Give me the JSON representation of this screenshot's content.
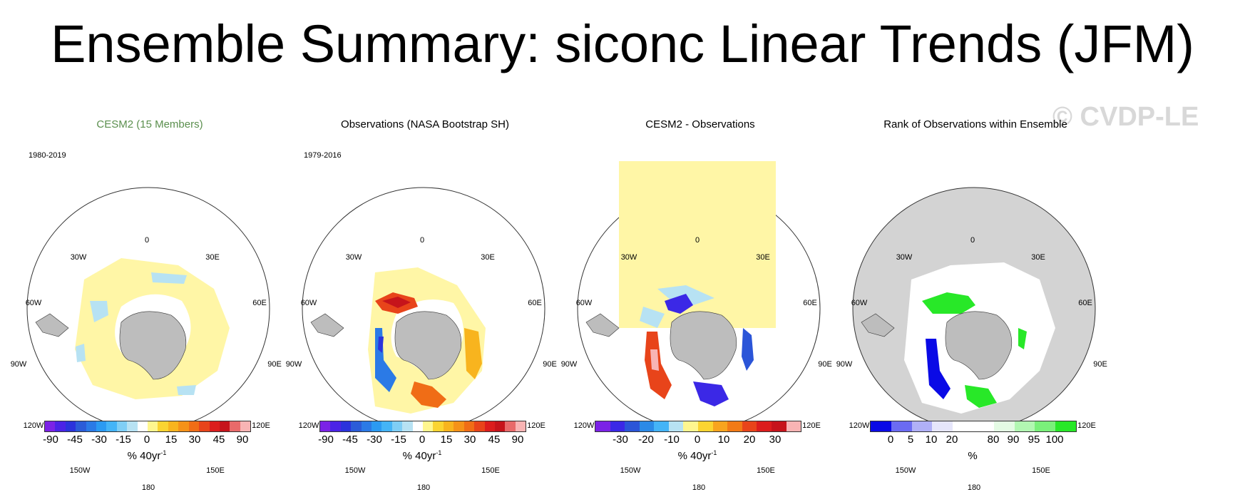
{
  "title": "Ensemble Summary: siconc Linear Trends (JFM)",
  "watermark": "© CVDP-LE",
  "lon_labels": {
    "n": "0",
    "nne": "30E",
    "ene": "60E",
    "e": "90E",
    "ese": "120E",
    "sse": "150E",
    "s": "180",
    "ssw": "150W",
    "wsw": "120W",
    "w": "90W",
    "wnw": "60W",
    "nnw": "30W"
  },
  "panels": [
    {
      "title": "CESM2 (15 Members)",
      "title_color": "#5b8f4e",
      "period": "1980-2019",
      "unit": "% 40yr",
      "unit_sup": "-1",
      "colorbar": [
        "#7b22e6",
        "#4b23e6",
        "#2b33dc",
        "#2b5cd8",
        "#2b7ae6",
        "#2b9af2",
        "#44b4f7",
        "#7fcef5",
        "#b7e2f3",
        "#ffffff",
        "#fff68f",
        "#fbd431",
        "#f8b41e",
        "#f59218",
        "#f06d16",
        "#e8441a",
        "#dc1d1d",
        "#c6141b",
        "#e86a6a",
        "#f8b4b4"
      ],
      "ticks": [
        "-90",
        "-45",
        "-30",
        "-15",
        "0",
        "15",
        "30",
        "45",
        "90"
      ]
    },
    {
      "title": "Observations (NASA Bootstrap SH)",
      "title_color": "#000000",
      "period": "1979-2016",
      "unit": "% 40yr",
      "unit_sup": "-1",
      "colorbar": [
        "#7b22e6",
        "#4b23e6",
        "#2b33dc",
        "#2b5cd8",
        "#2b7ae6",
        "#2b9af2",
        "#44b4f7",
        "#7fcef5",
        "#b7e2f3",
        "#ffffff",
        "#fff68f",
        "#fbd431",
        "#f8b41e",
        "#f59218",
        "#f06d16",
        "#e8441a",
        "#dc1d1d",
        "#c6141b",
        "#e86a6a",
        "#f8b4b4"
      ],
      "ticks": [
        "-90",
        "-45",
        "-30",
        "-15",
        "0",
        "15",
        "30",
        "45",
        "90"
      ]
    },
    {
      "title": "CESM2 - Observations",
      "title_color": "#000000",
      "period": "",
      "unit": "% 40yr",
      "unit_sup": "-1",
      "colorbar": [
        "#7b22e6",
        "#3b28e6",
        "#2b55d8",
        "#2b8ae6",
        "#44b4f7",
        "#b7e2f3",
        "#fff68f",
        "#fbd431",
        "#f8a41e",
        "#f27a16",
        "#e8441a",
        "#dc1d1d",
        "#c6141b",
        "#f8b4b4"
      ],
      "ticks": [
        "-30",
        "-20",
        "-10",
        "0",
        "10",
        "20",
        "30"
      ]
    },
    {
      "title": "Rank of Observations within Ensemble",
      "title_color": "#000000",
      "period": "",
      "unit": "%",
      "unit_sup": "",
      "colorbar": [
        "#0a0ae6",
        "#6b6bf2",
        "#b0b0f7",
        "#e6e6fb",
        "#ffffff",
        "#ffffff",
        "#e4fbe4",
        "#b2f7b2",
        "#7af07a",
        "#28e828"
      ],
      "ticks": [
        "0",
        "5",
        "10",
        "20",
        "80",
        "90",
        "95",
        "100"
      ]
    }
  ]
}
